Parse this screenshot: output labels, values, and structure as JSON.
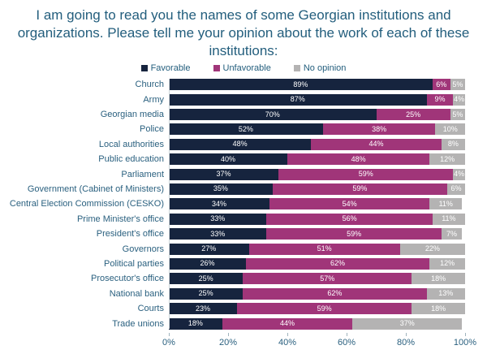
{
  "title": "I am going to read you the names of some Georgian institutions and organizations. Please tell me your opinion about the work of each of these institutions:",
  "colors": {
    "favorable": "#16243e",
    "unfavorable": "#a03579",
    "no_opinion": "#b4b3b3",
    "title_text": "#235e7d",
    "axis_text": "#2a607f"
  },
  "legend": [
    {
      "label": "Favorable",
      "color": "#16243e"
    },
    {
      "label": "Unfavorable",
      "color": "#a03579"
    },
    {
      "label": "No opinion",
      "color": "#b4b3b3"
    }
  ],
  "chart_data": {
    "type": "bar",
    "orientation": "horizontal-stacked",
    "title": "I am going to read you the names of some Georgian institutions and organizations. Please tell me your opinion about the work of each of these institutions:",
    "categories": [
      "Church",
      "Army",
      "Georgian media",
      "Police",
      "Local authorities",
      "Public education",
      "Parliament",
      "Government (Cabinet of Ministers)",
      "Central Election Commission (CESKO)",
      "Prime Minister's office",
      "President's office",
      "Governors",
      "Political parties",
      "Prosecutor's office",
      "National bank",
      "Courts",
      "Trade unions"
    ],
    "series": [
      {
        "name": "Favorable",
        "color": "#16243e",
        "values": [
          89,
          87,
          70,
          52,
          48,
          40,
          37,
          35,
          34,
          33,
          33,
          27,
          26,
          25,
          25,
          23,
          18
        ]
      },
      {
        "name": "Unfavorable",
        "color": "#a03579",
        "values": [
          6,
          9,
          25,
          38,
          44,
          48,
          59,
          59,
          54,
          56,
          59,
          51,
          62,
          57,
          62,
          59,
          44
        ]
      },
      {
        "name": "No opinion",
        "color": "#b4b3b3",
        "values": [
          5,
          4,
          5,
          10,
          8,
          12,
          4,
          6,
          11,
          11,
          7,
          22,
          12,
          18,
          13,
          18,
          37
        ]
      }
    ],
    "value_suffix": "%",
    "xlim": [
      0,
      100
    ],
    "x_ticks": [
      "0%",
      "20%",
      "40%",
      "60%",
      "80%",
      "100%"
    ],
    "x_tick_values": [
      0,
      20,
      40,
      60,
      80,
      100
    ],
    "grid": false,
    "legend_position": "top-center",
    "value_labels": "inside-white"
  }
}
